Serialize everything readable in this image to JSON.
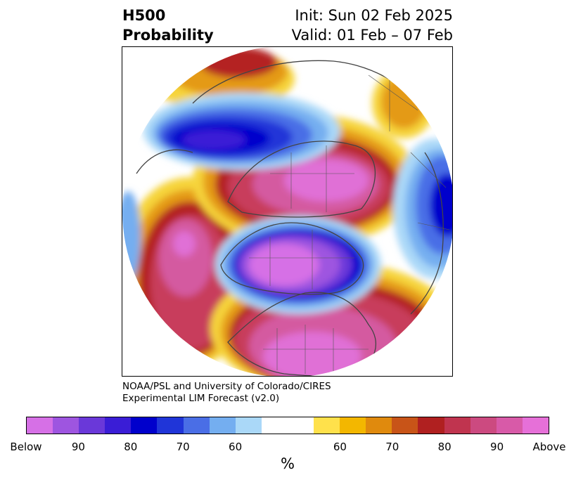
{
  "header": {
    "title_line1": "H500",
    "title_line2": "Probability",
    "init": "Init: Sun 02 Feb 2025",
    "valid": "Valid: 01 Feb – 07 Feb"
  },
  "credit": {
    "line1": "NOAA/PSL and University of Colorado/CIRES",
    "line2": "Experimental LIM Forecast (v2.0)"
  },
  "map": {
    "projection": "north polar stereographic",
    "features": [
      "coastlines",
      "country borders",
      "state/province borders"
    ],
    "anomalies": [
      {
        "region": "North America / Arctic Canada",
        "category": "Below",
        "level": "90+"
      },
      {
        "region": "Eastern North Pacific / Alaska",
        "category": "Above",
        "level": "90+"
      },
      {
        "region": "Eastern United States / Western Atlantic",
        "category": "Above",
        "level": "90+"
      },
      {
        "region": "Siberia / Russian Arctic",
        "category": "Above",
        "level": "90+"
      },
      {
        "region": "Western Europe / North Atlantic",
        "category": "Below",
        "level": "80-90"
      },
      {
        "region": "East Asia / Japan",
        "category": "Below",
        "level": "80-90"
      },
      {
        "region": "Central Asia",
        "category": "Above",
        "level": "70-80"
      }
    ]
  },
  "colorbar": {
    "unit": "%",
    "tick_labels": [
      "Below",
      "90",
      "80",
      "70",
      "60",
      "60",
      "70",
      "80",
      "90",
      "Above"
    ],
    "colors": [
      "#d670e6",
      "#9e55e0",
      "#6a38d9",
      "#3a1dd6",
      "#0000cc",
      "#2035d8",
      "#4a6ee6",
      "#74aef0",
      "#aad8f8",
      "#ffffff",
      "#ffffff",
      "#ffe14b",
      "#f3b700",
      "#e08a0d",
      "#c85418",
      "#b02020",
      "#c0344f",
      "#cc4a80",
      "#d85aa8",
      "#e670d8"
    ]
  }
}
